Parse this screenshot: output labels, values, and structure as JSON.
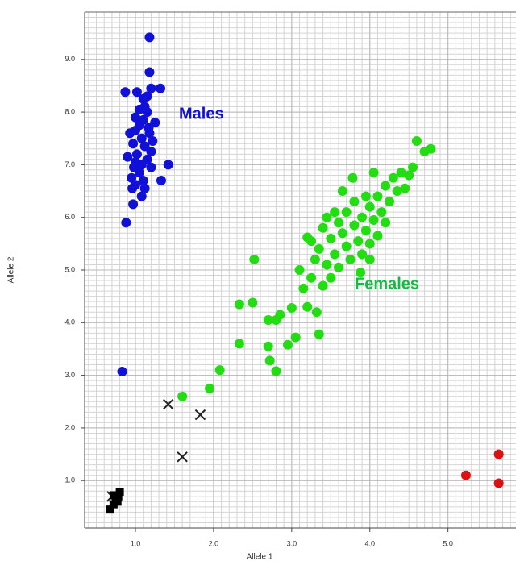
{
  "chart_data": {
    "type": "scatter",
    "x_label": "Allele 1",
    "y_label": "Allele 2",
    "xlim": [
      0.35,
      5.87
    ],
    "ylim": [
      0.1,
      9.9
    ],
    "xticks": [
      {
        "value": 1,
        "label": "1.0"
      },
      {
        "value": 2,
        "label": "2.0"
      },
      {
        "value": 3,
        "label": "3.0"
      },
      {
        "value": 4,
        "label": "4.0"
      },
      {
        "value": 5,
        "label": "5.0"
      }
    ],
    "yticks": [
      {
        "value": 1,
        "label": "1.0"
      },
      {
        "value": 2,
        "label": "2.0"
      },
      {
        "value": 3,
        "label": "3.0"
      },
      {
        "value": 4,
        "label": "4.0"
      },
      {
        "value": 5,
        "label": "5.0"
      },
      {
        "value": 6,
        "label": "6.0"
      },
      {
        "value": 7,
        "label": "7.0"
      },
      {
        "value": 8,
        "label": "8.0"
      },
      {
        "value": 9,
        "label": "9.0"
      }
    ],
    "grid": true,
    "series": [
      {
        "name": "Males",
        "color": "#1010d8",
        "marker": "circle",
        "x": [
          1.18,
          1.18,
          0.87,
          1.02,
          1.2,
          1.32,
          1.1,
          1.12,
          1.05,
          1.15,
          1.25,
          1.0,
          1.1,
          0.93,
          1.0,
          1.18,
          1.08,
          1.22,
          0.97,
          1.12,
          1.2,
          1.02,
          0.9,
          1.15,
          1.08,
          0.98,
          1.42,
          1.2,
          1.05,
          0.95,
          1.1,
          1.33,
          1.0,
          1.12,
          0.96,
          1.08,
          0.97,
          0.88,
          0.83,
          1.17,
          1.05,
          1.15,
          1.0
        ],
        "values": [
          9.42,
          8.76,
          8.38,
          8.38,
          8.45,
          8.45,
          8.25,
          8.1,
          8.05,
          8.0,
          7.8,
          7.9,
          7.85,
          7.6,
          7.65,
          7.6,
          7.5,
          7.45,
          7.4,
          7.35,
          7.25,
          7.2,
          7.15,
          7.1,
          7.0,
          6.95,
          7.0,
          6.95,
          6.85,
          6.75,
          6.7,
          6.7,
          6.62,
          6.55,
          6.55,
          6.4,
          6.25,
          5.9,
          3.07,
          7.7,
          7.75,
          8.3,
          7.05
        ]
      },
      {
        "name": "Females",
        "color": "#22dd11",
        "marker": "circle",
        "x": [
          1.6,
          1.95,
          2.08,
          2.33,
          2.33,
          2.5,
          2.52,
          2.7,
          2.72,
          2.8,
          2.7,
          2.8,
          2.85,
          2.95,
          3.05,
          3.0,
          3.2,
          3.32,
          3.35,
          3.2,
          3.1,
          3.15,
          3.25,
          3.3,
          3.4,
          3.35,
          3.45,
          3.5,
          3.4,
          3.5,
          3.55,
          3.6,
          3.6,
          3.65,
          3.7,
          3.7,
          3.75,
          3.8,
          3.8,
          3.85,
          3.9,
          3.9,
          3.95,
          3.95,
          4.0,
          4.0,
          4.05,
          4.05,
          4.1,
          4.1,
          4.15,
          4.2,
          4.2,
          4.25,
          4.3,
          4.35,
          4.4,
          4.5,
          4.55,
          4.6,
          4.7,
          4.78,
          3.78,
          3.65,
          3.55,
          4.45,
          3.88,
          4.0,
          3.45,
          3.25
        ],
        "values": [
          2.6,
          2.75,
          3.1,
          3.6,
          4.35,
          4.38,
          5.2,
          3.55,
          3.28,
          3.08,
          4.05,
          4.05,
          4.15,
          3.58,
          3.72,
          4.28,
          4.3,
          4.2,
          3.78,
          5.62,
          5.0,
          4.65,
          4.85,
          5.2,
          4.7,
          5.4,
          5.1,
          4.85,
          5.8,
          5.6,
          5.3,
          5.9,
          5.05,
          5.7,
          5.45,
          6.1,
          5.2,
          5.85,
          6.3,
          5.55,
          6.0,
          5.3,
          6.4,
          5.75,
          6.2,
          5.5,
          5.95,
          6.85,
          6.4,
          5.65,
          6.1,
          6.6,
          5.9,
          6.3,
          6.75,
          6.5,
          6.85,
          6.8,
          6.95,
          7.45,
          7.25,
          7.3,
          6.75,
          6.5,
          6.1,
          6.55,
          4.95,
          5.2,
          6.0,
          5.55
        ]
      },
      {
        "color": "#dd1111",
        "marker": "circle",
        "x": [
          5.23,
          5.65,
          5.65
        ],
        "values": [
          1.1,
          1.5,
          0.95
        ]
      },
      {
        "color": "#222222",
        "marker": "x",
        "x": [
          1.42,
          1.83,
          1.6,
          0.7
        ],
        "values": [
          2.45,
          2.25,
          1.45,
          0.7
        ]
      },
      {
        "color": "#000000",
        "marker": "square",
        "x": [
          0.68,
          0.72,
          0.75,
          0.78,
          0.8,
          0.73,
          0.77
        ],
        "values": [
          0.45,
          0.55,
          0.62,
          0.7,
          0.78,
          0.72,
          0.6
        ]
      }
    ]
  }
}
